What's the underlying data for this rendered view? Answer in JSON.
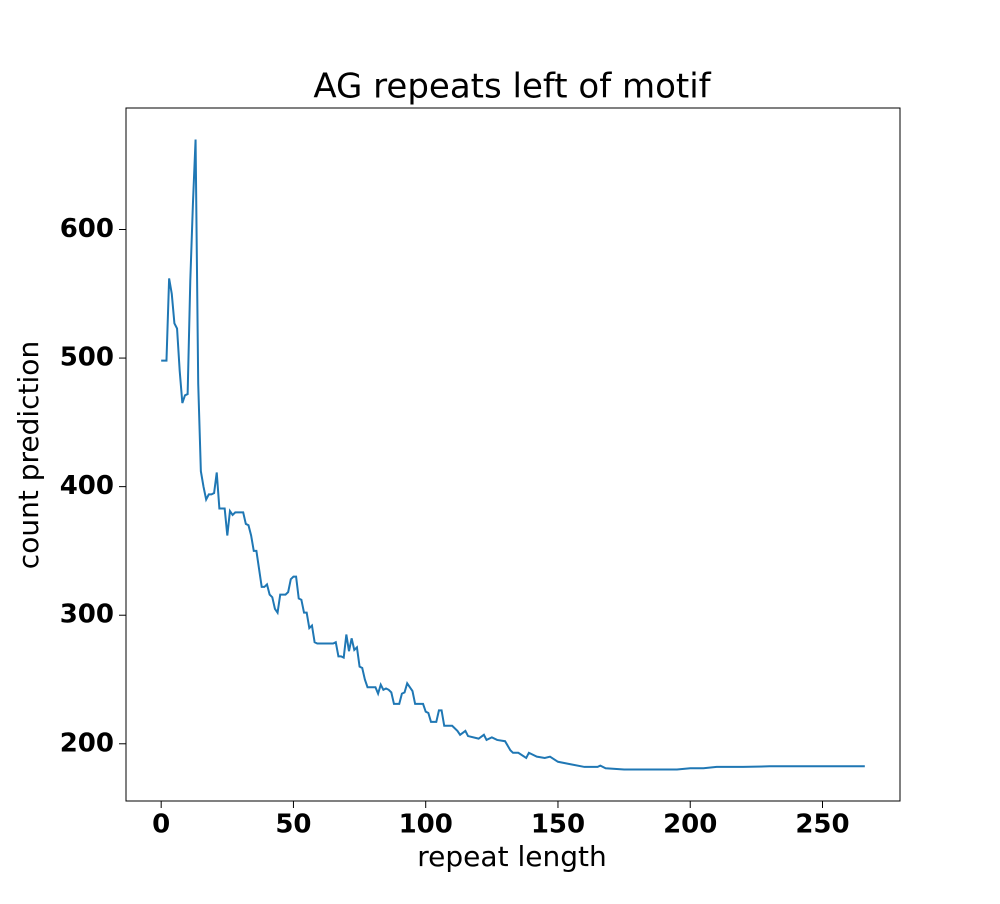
{
  "chart_data": {
    "type": "line",
    "title": "AG repeats left of motif",
    "x_label": "repeat length",
    "y_label": "count prediction",
    "x": [
      0,
      1,
      2,
      3,
      4,
      5,
      6,
      7,
      8,
      9,
      10,
      11,
      12,
      13,
      14,
      15,
      16,
      17,
      18,
      19,
      20,
      21,
      22,
      23,
      24,
      25,
      26,
      27,
      28,
      29,
      30,
      31,
      32,
      33,
      34,
      35,
      36,
      37,
      38,
      39,
      40,
      41,
      42,
      43,
      44,
      45,
      46,
      47,
      48,
      49,
      50,
      51,
      52,
      53,
      54,
      55,
      56,
      57,
      58,
      59,
      60,
      61,
      62,
      63,
      64,
      65,
      66,
      67,
      68,
      69,
      70,
      71,
      72,
      73,
      74,
      75,
      76,
      77,
      78,
      79,
      80,
      81,
      82,
      83,
      84,
      85,
      86,
      87,
      88,
      89,
      90,
      91,
      92,
      93,
      94,
      95,
      96,
      97,
      98,
      99,
      100,
      101,
      102,
      103,
      104,
      105,
      106,
      107,
      110,
      112,
      113,
      115,
      116,
      120,
      122,
      123,
      125,
      127,
      130,
      132,
      133,
      135,
      138,
      139,
      142,
      145,
      147,
      150,
      155,
      160,
      165,
      166,
      168,
      175,
      195,
      200,
      205,
      210,
      220,
      230,
      266
    ],
    "series": [
      {
        "name": "count prediction",
        "color": "#1f77b4",
        "values": [
          498,
          498,
          498,
          562,
          550,
          527,
          523,
          490,
          465,
          471,
          472,
          560,
          620,
          670,
          480,
          412,
          400,
          390,
          394,
          394,
          395,
          411,
          383,
          383,
          383,
          362,
          381,
          378,
          380,
          380,
          380,
          380,
          371,
          370,
          362,
          350,
          350,
          336,
          322,
          322,
          324,
          316,
          314,
          305,
          302,
          316,
          316,
          316,
          318,
          328,
          330,
          330,
          313,
          312,
          302,
          302,
          290,
          292,
          279,
          278,
          278,
          278,
          278,
          278,
          278,
          278,
          279,
          268,
          268,
          267,
          285,
          272,
          282,
          273,
          275,
          260,
          259,
          250,
          244,
          244,
          244,
          244,
          239,
          246,
          242,
          243,
          242,
          240,
          231,
          231,
          231,
          239,
          240,
          247,
          244,
          241,
          231,
          231,
          231,
          231,
          225,
          224,
          217,
          217,
          217,
          226,
          226,
          214,
          214,
          210,
          207,
          210,
          206,
          204,
          207,
          203,
          205,
          203,
          202,
          195,
          193,
          193,
          189,
          193,
          190,
          189,
          190,
          186,
          184,
          182,
          182,
          183,
          181,
          180,
          180,
          181,
          181,
          182,
          182,
          182.5,
          182.5
        ]
      }
    ],
    "xlim": [
      -13.3,
      279.3
    ],
    "ylim": [
      155.5,
      694.5
    ],
    "xticks": [
      0,
      50,
      100,
      150,
      200,
      250
    ],
    "yticks": [
      200,
      300,
      400,
      500,
      600
    ]
  }
}
